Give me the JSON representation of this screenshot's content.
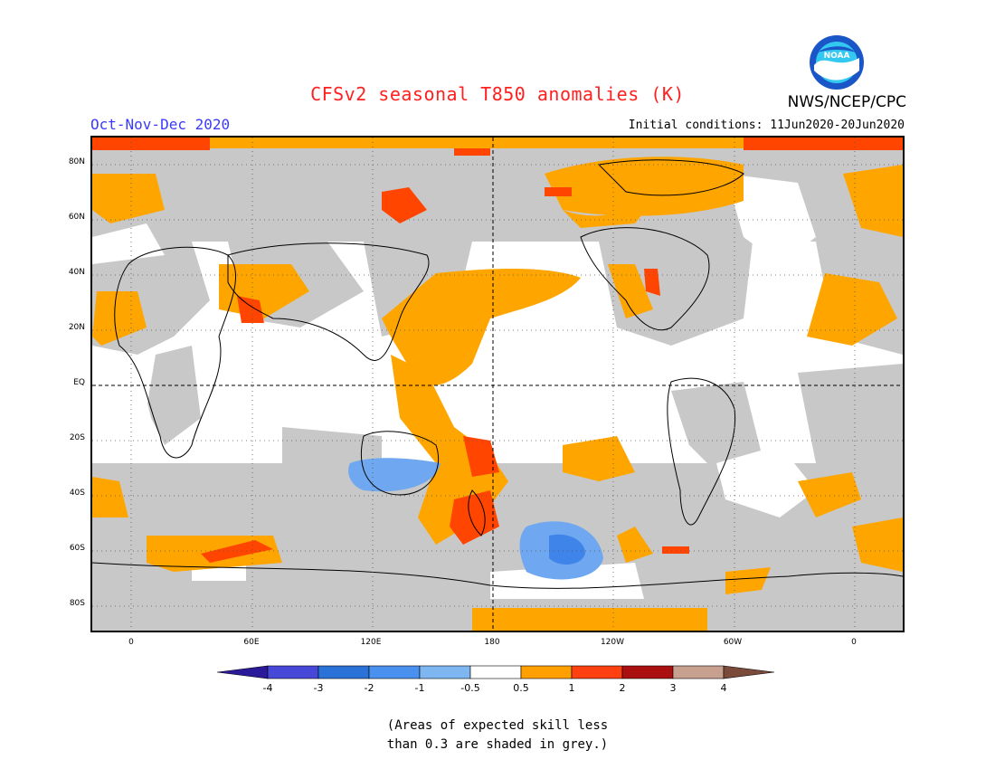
{
  "header": {
    "title": "CFSv2 seasonal T850 anomalies (K)",
    "period": "Oct-Nov-Dec 2020",
    "initial_conditions": "Initial conditions: 11Jun2020-20Jun2020",
    "agency": "NWS/NCEP/CPC",
    "logo_text": "NOAA"
  },
  "map": {
    "lat_labels": [
      "80N",
      "60N",
      "40N",
      "20N",
      "EQ",
      "20S",
      "40S",
      "60S",
      "80S"
    ],
    "lon_labels": [
      "0",
      "60E",
      "120E",
      "180",
      "120W",
      "60W",
      "0"
    ],
    "colors": {
      "land_outline": "#000000",
      "grey_skill": "#c8c8c8",
      "warm_0_5_1": "#ffa500",
      "warm_1_2": "#ff4500",
      "cool_neg1_neg0_5": "#6fa8f0",
      "cool_neg2_neg1": "#3f84e8"
    }
  },
  "legend": {
    "labels": [
      "-4",
      "-3",
      "-2",
      "-1",
      "-0.5",
      "0.5",
      "1",
      "2",
      "3",
      "4"
    ],
    "colors": [
      "#2a1a9a",
      "#4848d8",
      "#2a72d8",
      "#4a90ee",
      "#7eb6f2",
      "#ffffff",
      "#ffa000",
      "#ff4010",
      "#aa1010",
      "#c8a090",
      "#7a4a3a"
    ]
  },
  "note": {
    "line1": "(Areas of expected skill less",
    "line2": "than 0.3 are shaded in grey.)"
  }
}
